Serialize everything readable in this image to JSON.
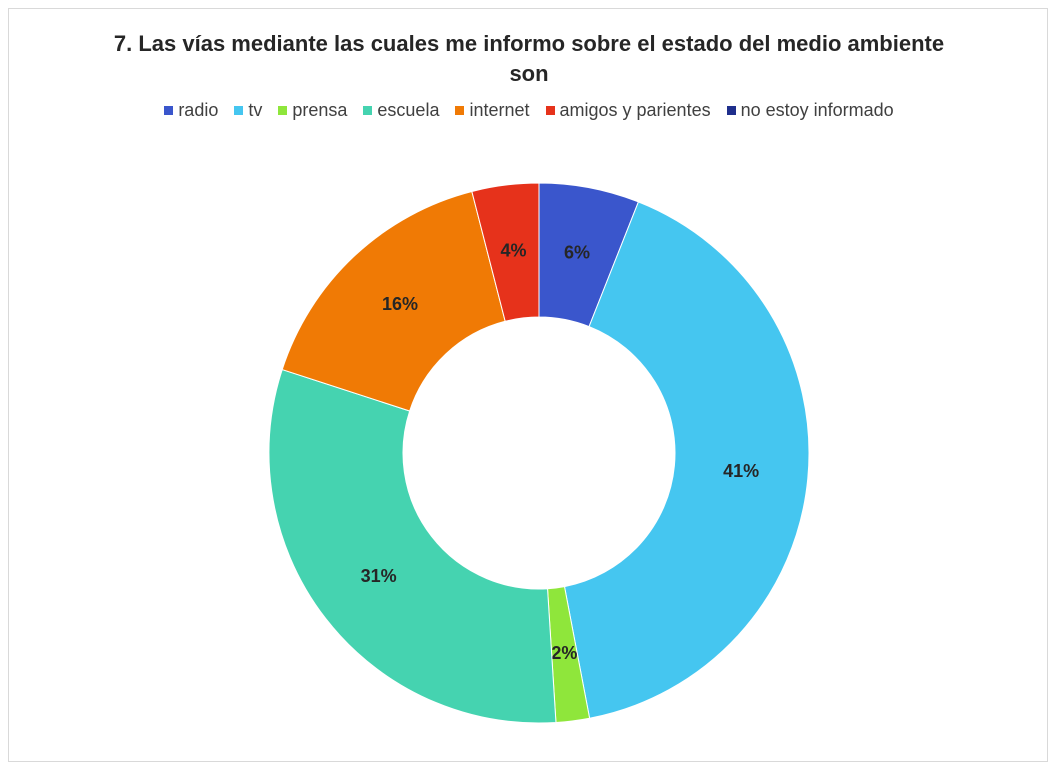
{
  "chart_data": {
    "type": "donut",
    "title": "7. Las vías mediante las cuales me informo sobre el estado del medio ambiente son",
    "categories": [
      "radio",
      "tv",
      "prensa",
      "escuela",
      "internet",
      "amigos y parientes",
      "no estoy informado"
    ],
    "values": [
      6,
      41,
      2,
      31,
      16,
      4,
      0
    ],
    "value_labels": [
      "6%",
      "41%",
      "2%",
      "31%",
      "16%",
      "4%",
      null
    ],
    "colors": [
      "#3a56cc",
      "#45c6f0",
      "#8fe63b",
      "#45d3b0",
      "#f07a05",
      "#e6321b",
      "#1f2f8c"
    ],
    "legend": "top"
  }
}
